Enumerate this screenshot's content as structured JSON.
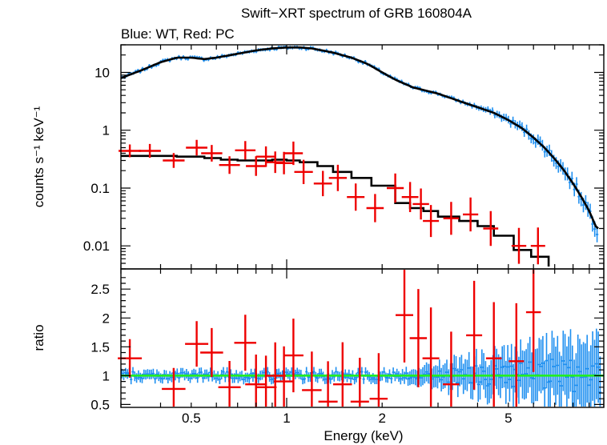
{
  "title": "Swift−XRT spectrum of GRB 160804A",
  "subtitle": "Blue: WT, Red: PC",
  "colors": {
    "wt": "#1e8ff0",
    "pc": "#ee0000",
    "model": "#000000",
    "unity": "#22ee22",
    "frame": "#000000"
  },
  "chart_data": [
    {
      "type": "scatter",
      "panel": "spectrum",
      "xlabel": "",
      "ylabel": "counts s⁻¹ keV⁻¹",
      "xscale": "log",
      "yscale": "log",
      "xlim": [
        0.3,
        10
      ],
      "ylim": [
        0.004,
        30
      ],
      "yticks": [
        0.01,
        0.1,
        1,
        10
      ],
      "ytick_labels": [
        "0.01",
        "0.1",
        "1",
        "10"
      ],
      "series": [
        {
          "name": "WT",
          "x": [
            0.3,
            0.35,
            0.4,
            0.45,
            0.5,
            0.55,
            0.6,
            0.7,
            0.8,
            0.9,
            1.0,
            1.1,
            1.2,
            1.4,
            1.6,
            1.8,
            2.0,
            2.2,
            2.5,
            3.0,
            3.5,
            4.0,
            4.5,
            5.0,
            5.5,
            6.0,
            6.5,
            7.0,
            7.5,
            8.0,
            8.5,
            9.0,
            9.5
          ],
          "values": [
            8,
            11,
            15,
            18,
            18,
            17,
            18,
            21,
            24,
            26,
            27,
            27,
            26,
            22,
            18,
            14,
            10,
            7.5,
            5.5,
            4.3,
            3.2,
            2.5,
            2.0,
            1.5,
            1.1,
            0.75,
            0.5,
            0.32,
            0.2,
            0.12,
            0.07,
            0.04,
            0.02
          ]
        },
        {
          "name": "PC",
          "x": [
            0.32,
            0.37,
            0.44,
            0.52,
            0.58,
            0.66,
            0.74,
            0.8,
            0.86,
            0.92,
            0.98,
            1.05,
            1.13,
            1.3,
            1.45,
            1.65,
            1.9,
            2.2,
            2.45,
            2.65,
            2.85,
            3.3,
            3.8,
            4.4,
            5.4,
            6.2
          ],
          "values": [
            0.44,
            0.44,
            0.3,
            0.5,
            0.4,
            0.25,
            0.45,
            0.24,
            0.35,
            0.28,
            0.27,
            0.4,
            0.19,
            0.12,
            0.15,
            0.07,
            0.045,
            0.1,
            0.07,
            0.053,
            0.027,
            0.03,
            0.035,
            0.02,
            0.01,
            0.01
          ]
        }
      ]
    },
    {
      "type": "scatter",
      "panel": "ratio",
      "xlabel": "Energy (keV)",
      "ylabel": "ratio",
      "xscale": "log",
      "xlim": [
        0.3,
        10
      ],
      "ylim": [
        0.45,
        2.85
      ],
      "xticks": [
        0.5,
        1,
        2,
        5
      ],
      "xtick_labels": [
        "0.5",
        "1",
        "2",
        "5"
      ],
      "yticks": [
        0.5,
        1,
        1.5,
        2,
        2.5
      ],
      "ytick_labels": [
        "0.5",
        "1",
        "1.5",
        "2",
        "2.5"
      ],
      "reference_line": 1,
      "series": [
        {
          "name": "PC",
          "x": [
            0.32,
            0.44,
            0.52,
            0.58,
            0.66,
            0.74,
            0.8,
            0.86,
            0.92,
            0.98,
            1.05,
            1.2,
            1.35,
            1.5,
            1.7,
            1.95,
            2.35,
            2.6,
            2.85,
            3.3,
            3.9,
            4.5,
            5.3,
            6.0
          ],
          "values": [
            1.3,
            0.77,
            1.55,
            1.4,
            0.8,
            1.57,
            0.85,
            0.8,
            1.0,
            0.9,
            1.35,
            0.75,
            0.55,
            0.85,
            0.55,
            0.6,
            2.05,
            1.65,
            1.3,
            0.85,
            1.7,
            1.3,
            1.25,
            2.1
          ]
        }
      ]
    }
  ]
}
